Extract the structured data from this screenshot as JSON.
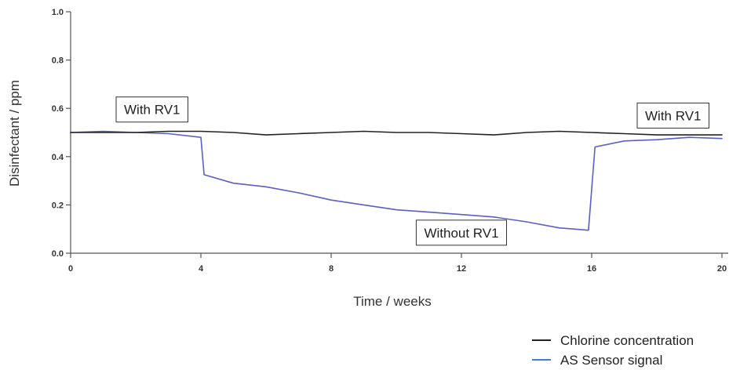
{
  "chart_data": {
    "type": "line",
    "xlabel": "Time / weeks",
    "ylabel": "Disinfectant / ppm",
    "xlim": [
      0,
      20
    ],
    "ylim": [
      0,
      1.0
    ],
    "x_ticks": [
      0,
      4,
      8,
      12,
      16,
      20
    ],
    "y_ticks": [
      0.0,
      0.2,
      0.4,
      0.6,
      0.8,
      1.0
    ],
    "x_tick_labels": [
      "0",
      "4",
      "8",
      "12",
      "16",
      "20"
    ],
    "y_tick_labels": [
      "0.0",
      "0.2",
      "0.4",
      "0.6",
      "0.8",
      "1.0"
    ],
    "grid": false,
    "legend_position": "bottom-right",
    "series": [
      {
        "name": "Chlorine concentration",
        "color": "#222222",
        "x": [
          0,
          1,
          2,
          3,
          4,
          5,
          6,
          7,
          8,
          9,
          10,
          11,
          12,
          13,
          14,
          15,
          16,
          17,
          18,
          19,
          20
        ],
        "y": [
          0.5,
          0.5,
          0.5,
          0.505,
          0.505,
          0.5,
          0.49,
          0.495,
          0.5,
          0.505,
          0.5,
          0.5,
          0.495,
          0.49,
          0.5,
          0.505,
          0.5,
          0.495,
          0.49,
          0.49,
          0.49
        ]
      },
      {
        "name": "AS Sensor signal",
        "color": "#5a5fc8",
        "x": [
          0,
          1,
          2,
          3,
          4,
          4.1,
          5,
          6,
          7,
          8,
          9,
          10,
          11,
          12,
          13,
          14,
          15,
          15.9,
          16.1,
          17,
          18,
          19,
          20
        ],
        "y": [
          0.5,
          0.505,
          0.5,
          0.495,
          0.48,
          0.325,
          0.29,
          0.275,
          0.25,
          0.22,
          0.2,
          0.18,
          0.17,
          0.16,
          0.15,
          0.13,
          0.105,
          0.095,
          0.44,
          0.465,
          0.47,
          0.48,
          0.475
        ]
      }
    ],
    "annotations": [
      {
        "text": "With RV1",
        "x": 2.5,
        "y": 0.595
      },
      {
        "text": "With RV1",
        "x": 18.5,
        "y": 0.57
      },
      {
        "text": "Without RV1",
        "x": 12.0,
        "y": 0.085
      }
    ]
  },
  "legend": [
    {
      "label": "Chlorine concentration",
      "color": "#222222"
    },
    {
      "label": "AS Sensor signal",
      "color": "#3d7fd6"
    }
  ]
}
